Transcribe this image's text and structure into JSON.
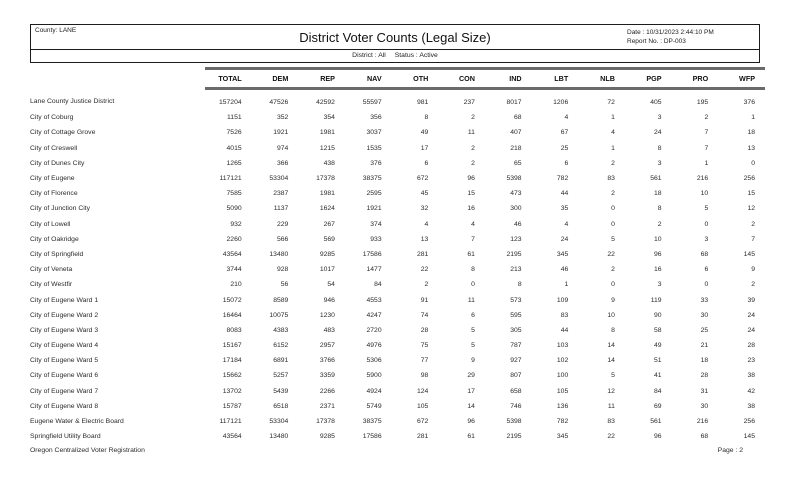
{
  "report": {
    "county_label": "County: LANE",
    "title": "District Voter Counts (Legal Size)",
    "date_label": "Date : 10/31/2023 2:44:10 PM",
    "report_no_label": "Report No. : DP-003",
    "district_filter": "District : All",
    "status_filter": "Status : Active",
    "footer_left": "Oregon Centralized Voter Registration",
    "footer_right": "Page : 2"
  },
  "table": {
    "columns": [
      "TOTAL",
      "DEM",
      "REP",
      "NAV",
      "OTH",
      "CON",
      "IND",
      "LBT",
      "NLB",
      "PGP",
      "PRO",
      "WFP"
    ],
    "rows": [
      {
        "name": "Lane County Justice District",
        "values": [
          157204,
          47526,
          42592,
          55597,
          981,
          237,
          8017,
          1206,
          72,
          405,
          195,
          376
        ]
      },
      {
        "name": "City of Coburg",
        "values": [
          1151,
          352,
          354,
          356,
          8,
          2,
          68,
          4,
          1,
          3,
          2,
          1
        ]
      },
      {
        "name": "City of Cottage Grove",
        "values": [
          7526,
          1921,
          1981,
          3037,
          49,
          11,
          407,
          67,
          4,
          24,
          7,
          18
        ]
      },
      {
        "name": "City of Creswell",
        "values": [
          4015,
          974,
          1215,
          1535,
          17,
          2,
          218,
          25,
          1,
          8,
          7,
          13
        ]
      },
      {
        "name": "City of Dunes City",
        "values": [
          1265,
          366,
          438,
          376,
          6,
          2,
          65,
          6,
          2,
          3,
          1,
          0
        ]
      },
      {
        "name": "City of Eugene",
        "values": [
          117121,
          53304,
          17378,
          38375,
          672,
          96,
          5398,
          782,
          83,
          561,
          216,
          256
        ]
      },
      {
        "name": "City of Florence",
        "values": [
          7585,
          2387,
          1981,
          2595,
          45,
          15,
          473,
          44,
          2,
          18,
          10,
          15
        ]
      },
      {
        "name": "City of Junction City",
        "values": [
          5090,
          1137,
          1624,
          1921,
          32,
          16,
          300,
          35,
          0,
          8,
          5,
          12
        ]
      },
      {
        "name": "City of Lowell",
        "values": [
          932,
          229,
          267,
          374,
          4,
          4,
          46,
          4,
          0,
          2,
          0,
          2
        ]
      },
      {
        "name": "City of Oakridge",
        "values": [
          2260,
          566,
          569,
          933,
          13,
          7,
          123,
          24,
          5,
          10,
          3,
          7
        ]
      },
      {
        "name": "City of Springfield",
        "values": [
          43564,
          13480,
          9285,
          17586,
          281,
          61,
          2195,
          345,
          22,
          96,
          68,
          145
        ]
      },
      {
        "name": "City of Veneta",
        "values": [
          3744,
          928,
          1017,
          1477,
          22,
          8,
          213,
          46,
          2,
          16,
          6,
          9
        ]
      },
      {
        "name": "City of Westfir",
        "values": [
          210,
          56,
          54,
          84,
          2,
          0,
          8,
          1,
          0,
          3,
          0,
          2
        ]
      },
      {
        "name": "City of Eugene Ward 1",
        "values": [
          15072,
          8589,
          946,
          4553,
          91,
          11,
          573,
          109,
          9,
          119,
          33,
          39
        ]
      },
      {
        "name": "City of Eugene Ward 2",
        "values": [
          16464,
          10075,
          1230,
          4247,
          74,
          6,
          595,
          83,
          10,
          90,
          30,
          24
        ]
      },
      {
        "name": "City of Eugene Ward 3",
        "values": [
          8083,
          4383,
          483,
          2720,
          28,
          5,
          305,
          44,
          8,
          58,
          25,
          24
        ]
      },
      {
        "name": "City of Eugene Ward 4",
        "values": [
          15167,
          6152,
          2957,
          4976,
          75,
          5,
          787,
          103,
          14,
          49,
          21,
          28
        ]
      },
      {
        "name": "City of Eugene Ward 5",
        "values": [
          17184,
          6891,
          3766,
          5306,
          77,
          9,
          927,
          102,
          14,
          51,
          18,
          23
        ]
      },
      {
        "name": "City of Eugene Ward 6",
        "values": [
          15662,
          5257,
          3359,
          5900,
          98,
          29,
          807,
          100,
          5,
          41,
          28,
          38
        ]
      },
      {
        "name": "City of Eugene Ward 7",
        "values": [
          13702,
          5439,
          2266,
          4924,
          124,
          17,
          658,
          105,
          12,
          84,
          31,
          42
        ]
      },
      {
        "name": "City of Eugene Ward 8",
        "values": [
          15787,
          6518,
          2371,
          5749,
          105,
          14,
          746,
          136,
          11,
          69,
          30,
          38
        ]
      },
      {
        "name": "Eugene Water & Electric Board",
        "values": [
          117121,
          53304,
          17378,
          38375,
          672,
          96,
          5398,
          782,
          83,
          561,
          216,
          256
        ]
      },
      {
        "name": "Springfield Utility Board",
        "values": [
          43564,
          13480,
          9285,
          17586,
          281,
          61,
          2195,
          345,
          22,
          96,
          68,
          145
        ]
      }
    ]
  }
}
